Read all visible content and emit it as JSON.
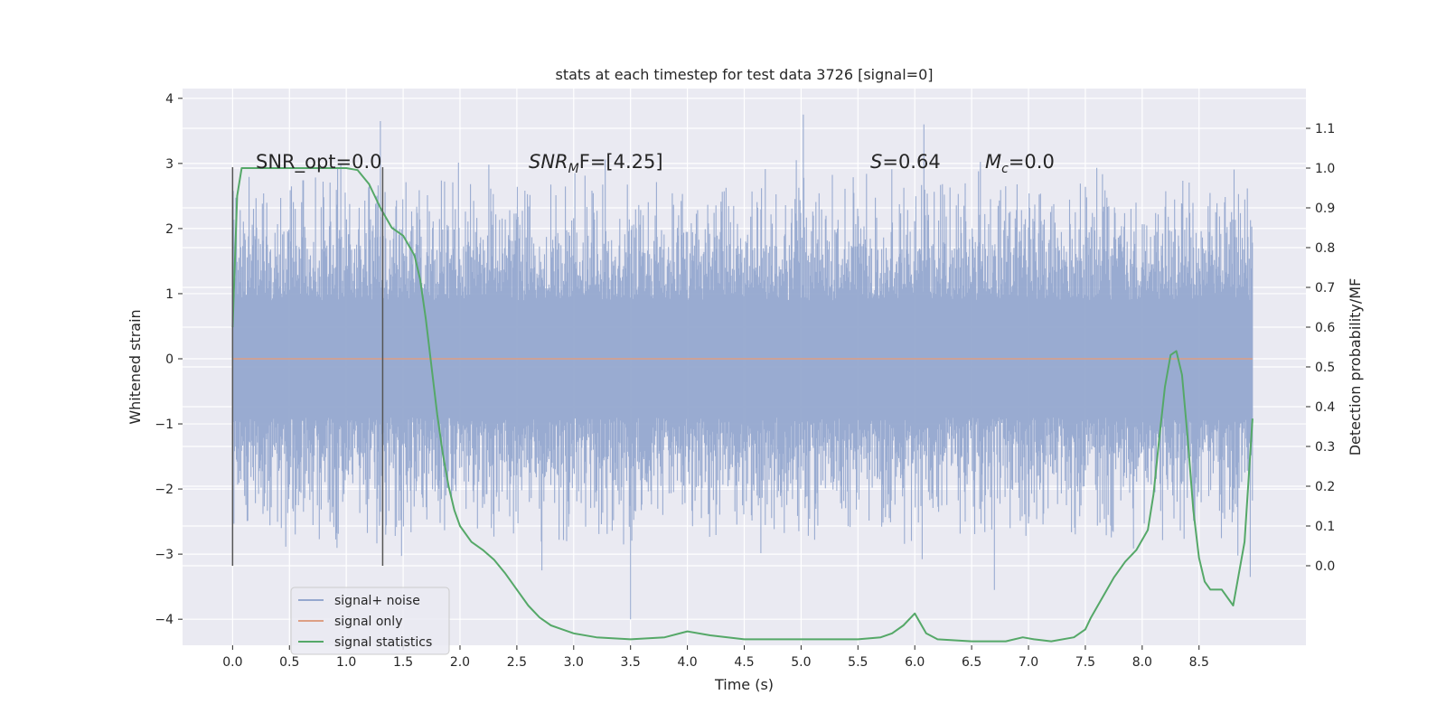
{
  "chart_data": {
    "type": "line",
    "title": "stats at each timestep for test data 3726 [signal=0]",
    "xlabel": "Time (s)",
    "ylabel_left": "Whitened strain",
    "ylabel_right": "Detection probability/MF",
    "xlim": [
      -0.44,
      9.44
    ],
    "ylim_left": [
      -4.4,
      4.15
    ],
    "ylim_right": [
      -0.2,
      1.2
    ],
    "x_ticks": [
      "0.0",
      "0.5",
      "1.0",
      "1.5",
      "2.0",
      "2.5",
      "3.0",
      "3.5",
      "4.0",
      "4.5",
      "5.0",
      "5.5",
      "6.0",
      "6.5",
      "7.0",
      "7.5",
      "8.0",
      "8.5"
    ],
    "y_ticks_left": [
      "−4",
      "−3",
      "−2",
      "−1",
      "0",
      "1",
      "2",
      "3",
      "4"
    ],
    "y_ticks_right": [
      "0.0",
      "0.1",
      "0.2",
      "0.3",
      "0.4",
      "0.5",
      "0.6",
      "0.7",
      "0.8",
      "0.9",
      "1.0",
      "1.1"
    ],
    "grid": true,
    "annotations": {
      "snr_opt": "SNR_opt=0.0",
      "snr_mf_main": "SNR",
      "snr_mf_sub": "M",
      "snr_mf_rest": "F=[4.25]",
      "s_italic": "S",
      "s_value": "=0.64",
      "mc_italic": "M",
      "mc_sub": "c",
      "mc_value": "=0.0"
    },
    "markers": [
      0.0,
      1.32
    ],
    "noise": {
      "name": "signal+ noise",
      "x_range": [
        0.0,
        8.97
      ],
      "envelope_typical": 2.5,
      "peaks": [
        {
          "x": 1.3,
          "y": 3.65
        },
        {
          "x": 5.02,
          "y": 3.75
        },
        {
          "x": 6.08,
          "y": 3.6
        },
        {
          "x": 3.5,
          "y": -4.0
        },
        {
          "x": 6.7,
          "y": -3.55
        },
        {
          "x": 8.95,
          "y": -3.35
        },
        {
          "x": 2.72,
          "y": -3.25
        }
      ]
    },
    "series": [
      {
        "name": "signal only",
        "axis": "left",
        "x": [
          0.0,
          8.97
        ],
        "y": [
          0.0,
          0.0
        ]
      },
      {
        "name": "signal statistics",
        "axis": "right",
        "x": [
          0.0,
          0.04,
          0.08,
          0.12,
          0.2,
          0.3,
          0.5,
          0.7,
          0.9,
          1.0,
          1.1,
          1.2,
          1.3,
          1.4,
          1.5,
          1.6,
          1.65,
          1.7,
          1.75,
          1.8,
          1.85,
          1.9,
          1.95,
          2.0,
          2.1,
          2.2,
          2.3,
          2.4,
          2.5,
          2.6,
          2.7,
          2.8,
          2.9,
          3.0,
          3.2,
          3.5,
          3.8,
          4.0,
          4.2,
          4.5,
          5.0,
          5.5,
          5.7,
          5.8,
          5.9,
          6.0,
          6.1,
          6.2,
          6.5,
          6.8,
          6.95,
          7.05,
          7.2,
          7.4,
          7.5,
          7.55,
          7.65,
          7.75,
          7.85,
          7.95,
          8.05,
          8.1,
          8.15,
          8.2,
          8.25,
          8.3,
          8.35,
          8.4,
          8.45,
          8.5,
          8.55,
          8.6,
          8.7,
          8.8,
          8.9,
          8.97
        ],
        "y": [
          0.6,
          0.93,
          1.0,
          1.0,
          1.0,
          1.0,
          1.0,
          1.0,
          1.0,
          1.0,
          0.995,
          0.96,
          0.9,
          0.85,
          0.83,
          0.78,
          0.72,
          0.62,
          0.5,
          0.38,
          0.28,
          0.2,
          0.14,
          0.1,
          0.06,
          0.04,
          0.015,
          -0.02,
          -0.06,
          -0.1,
          -0.13,
          -0.15,
          -0.16,
          -0.17,
          -0.18,
          -0.185,
          -0.18,
          -0.165,
          -0.175,
          -0.185,
          -0.185,
          -0.185,
          -0.18,
          -0.17,
          -0.15,
          -0.12,
          -0.17,
          -0.185,
          -0.19,
          -0.19,
          -0.18,
          -0.185,
          -0.19,
          -0.18,
          -0.16,
          -0.13,
          -0.08,
          -0.03,
          0.01,
          0.04,
          0.09,
          0.18,
          0.32,
          0.45,
          0.53,
          0.54,
          0.48,
          0.32,
          0.14,
          0.02,
          -0.04,
          -0.06,
          -0.06,
          -0.1,
          0.06,
          0.37
        ]
      }
    ],
    "legend": {
      "placement": "lower-left",
      "entries": [
        "signal+ noise",
        "signal only",
        "signal statistics"
      ]
    },
    "colors": {
      "noise": "#95a8cf",
      "signal_only": "#dd9f84",
      "statistics": "#55a868",
      "background": "#eaeaf2",
      "grid": "#ffffff",
      "marker": "#555555"
    }
  }
}
